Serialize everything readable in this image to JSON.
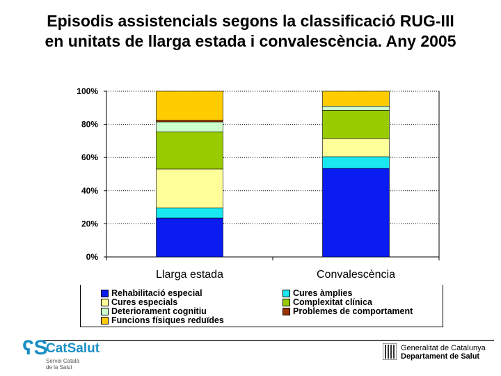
{
  "title_lines": [
    "Episodis assistencials segons la classificació RUG-III",
    "en unitats de llarga estada i convalescència. Any 2005"
  ],
  "chart_data": {
    "type": "bar",
    "stacked": true,
    "categories": [
      "Llarga estada",
      "Convalescència"
    ],
    "yticks": [
      "0%",
      "20%",
      "40%",
      "60%",
      "80%",
      "100%"
    ],
    "ylim": [
      0,
      100
    ],
    "grid": true,
    "legend_position": "bottom",
    "series": [
      {
        "name": "Rehabilitació especial",
        "color": "#0a1cf0",
        "values": [
          23.5,
          53.5
        ]
      },
      {
        "name": "Cures àmplies",
        "color": "#19e8f0",
        "values": [
          6,
          7
        ]
      },
      {
        "name": "Cures especials",
        "color": "#ffff99",
        "values": [
          23.5,
          11
        ]
      },
      {
        "name": "Complexitat clínica",
        "color": "#99cc00",
        "values": [
          22.5,
          17
        ]
      },
      {
        "name": "Deteriorament cognitiu",
        "color": "#ccffcc",
        "values": [
          6,
          2.5
        ]
      },
      {
        "name": "Problemes de comportament",
        "color": "#993300",
        "values": [
          1,
          0
        ]
      },
      {
        "name": "Funcions físiques reduïdes",
        "color": "#ffcc00",
        "values": [
          17.5,
          9
        ]
      }
    ]
  },
  "legend_order": [
    "Rehabilitació especial",
    "Cures àmplies",
    "Cures especials",
    "Complexitat clínica",
    "Deteriorament cognitiu",
    "Problemes de comportament",
    "Funcions físiques reduïdes"
  ],
  "footer": {
    "catsalut_mark": "ʕS",
    "catsalut_name": "CatSalut",
    "catsalut_sub_1": "Servei Català",
    "catsalut_sub_2": "de la Salut",
    "gencat_line1": "Generalitat de Catalunya",
    "gencat_line2": "Departament de Salut"
  }
}
